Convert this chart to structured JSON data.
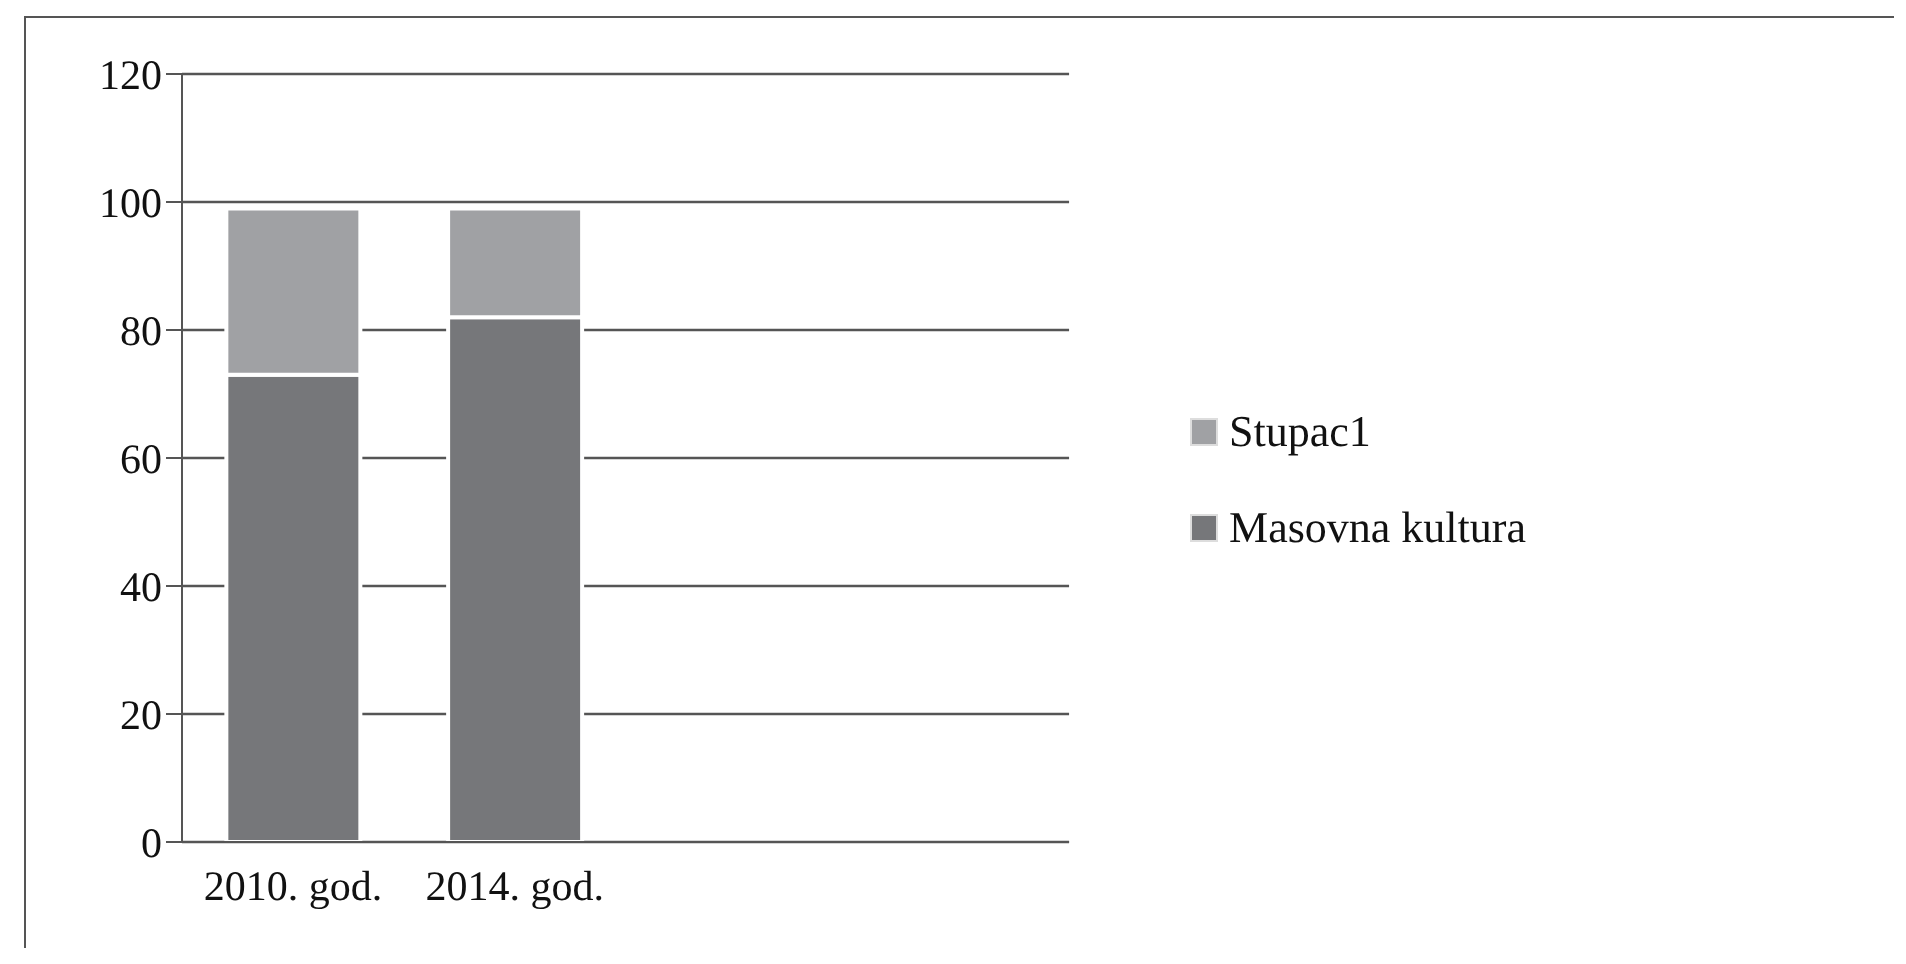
{
  "chart_data": {
    "type": "bar",
    "stacked": true,
    "categories": [
      "2010. god.",
      "2014. god.",
      null,
      null
    ],
    "series": [
      {
        "name": "Masovna kultura",
        "color": "#76777a",
        "values": [
          73,
          82,
          null,
          null
        ]
      },
      {
        "name": "Stupac1",
        "color": "#a0a1a4",
        "values": [
          26,
          17,
          null,
          null
        ]
      }
    ],
    "ylim": [
      0,
      120
    ],
    "yticks": [
      0,
      20,
      40,
      60,
      80,
      100,
      120
    ],
    "grid": "y",
    "legend": "right"
  }
}
